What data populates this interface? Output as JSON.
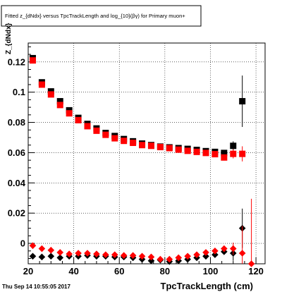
{
  "title_box": {
    "text": "Fitted  z_{dNdx}  versus TpcTrackLength and log_{10}(βγ) for Primary muon+"
  },
  "footer": {
    "date": "Thu Sep 14 10:55:05 2017"
  },
  "colors": {
    "series_black": "#000000",
    "series_red": "#ff0000",
    "frame": "#000000",
    "grid": "#000000"
  },
  "chart_data": {
    "type": "scatter",
    "title": "Fitted  z_{dNdx}  versus TpcTrackLength and log_{10}(βγ) for Primary muon+",
    "xlabel": "TpcTrackLength (cm)",
    "ylabel": "Z_{dNdx}",
    "xlim": [
      20,
      124
    ],
    "ylim": [
      -0.0135,
      0.1325
    ],
    "xticks": [
      20,
      40,
      60,
      80,
      100,
      120
    ],
    "yticks": [
      0,
      0.02,
      0.04,
      0.06,
      0.08,
      0.1,
      0.12
    ],
    "ytick_labels": [
      "0",
      "0.02",
      "0.04",
      "0.06",
      "0.08",
      "0.1",
      "0.12"
    ],
    "grid": true,
    "legend": "none",
    "series": [
      {
        "marker": "square",
        "color": "#000000",
        "x": [
          22,
          26,
          30,
          34,
          38,
          42,
          46,
          50,
          54,
          58,
          62,
          66,
          70,
          74,
          78,
          82,
          86,
          90,
          94,
          98,
          102,
          106,
          110,
          114
        ],
        "y": [
          0.1225,
          0.1065,
          0.1005,
          0.094,
          0.088,
          0.083,
          0.079,
          0.076,
          0.073,
          0.071,
          0.069,
          0.0675,
          0.066,
          0.065,
          0.064,
          0.0635,
          0.063,
          0.0625,
          0.0618,
          0.061,
          0.0605,
          0.0598,
          0.0645,
          0.094
        ],
        "yerr": [
          0.001,
          0.001,
          0.001,
          0.001,
          0.001,
          0.001,
          0.001,
          0.001,
          0.001,
          0.001,
          0.001,
          0.001,
          0.001,
          0.001,
          0.001,
          0.001,
          0.001,
          0.001,
          0.001,
          0.001,
          0.001,
          0.002,
          0.003,
          0.017
        ]
      },
      {
        "marker": "square",
        "color": "#ff0000",
        "x": [
          22,
          26,
          30,
          34,
          38,
          42,
          46,
          50,
          54,
          58,
          62,
          66,
          70,
          74,
          78,
          82,
          86,
          90,
          94,
          98,
          102,
          106,
          110,
          114
        ],
        "y": [
          0.121,
          0.105,
          0.0985,
          0.0915,
          0.086,
          0.0815,
          0.0775,
          0.0745,
          0.0718,
          0.0695,
          0.0678,
          0.0665,
          0.065,
          0.0645,
          0.0637,
          0.063,
          0.062,
          0.0612,
          0.0605,
          0.0598,
          0.059,
          0.0568,
          0.0592,
          0.0592
        ],
        "yerr": [
          0.001,
          0.001,
          0.001,
          0.001,
          0.001,
          0.001,
          0.001,
          0.001,
          0.001,
          0.001,
          0.001,
          0.001,
          0.001,
          0.001,
          0.001,
          0.001,
          0.001,
          0.001,
          0.001,
          0.001,
          0.001,
          0.002,
          0.003,
          0.005
        ]
      },
      {
        "marker": "diamond",
        "color": "#000000",
        "x": [
          22,
          26,
          30,
          34,
          38,
          42,
          46,
          50,
          54,
          58,
          62,
          66,
          70,
          74,
          78,
          82,
          86,
          90,
          94,
          98,
          102,
          106,
          110,
          114
        ],
        "y": [
          -0.0085,
          -0.009,
          -0.0085,
          -0.0095,
          -0.0085,
          -0.0085,
          -0.008,
          -0.0085,
          -0.0085,
          -0.009,
          -0.009,
          -0.0095,
          -0.0105,
          -0.0115,
          -0.011,
          -0.012,
          -0.0115,
          -0.0105,
          -0.0095,
          -0.0085,
          -0.0075,
          -0.0055,
          -0.0065,
          0.01
        ],
        "yerr": [
          0.001,
          0.001,
          0.001,
          0.001,
          0.001,
          0.001,
          0.001,
          0.001,
          0.001,
          0.001,
          0.001,
          0.001,
          0.001,
          0.001,
          0.001,
          0.001,
          0.001,
          0.001,
          0.001,
          0.001,
          0.001,
          0.002,
          0.005,
          0.013
        ]
      },
      {
        "marker": "diamond",
        "color": "#ff0000",
        "x": [
          22,
          26,
          30,
          34,
          38,
          42,
          46,
          50,
          54,
          58,
          62,
          66,
          70,
          74,
          78,
          82,
          86,
          90,
          94,
          98,
          102,
          106,
          110,
          114,
          118
        ],
        "y": [
          -0.0015,
          -0.0035,
          -0.0045,
          -0.006,
          -0.007,
          -0.0065,
          -0.0065,
          -0.007,
          -0.0075,
          -0.0075,
          -0.008,
          -0.008,
          -0.0085,
          -0.009,
          -0.0105,
          -0.0105,
          -0.0095,
          -0.0085,
          -0.0075,
          -0.006,
          -0.005,
          -0.0035,
          -0.0035,
          -0.0065,
          -0.0135
        ],
        "yerr": [
          0.001,
          0.001,
          0.001,
          0.001,
          0.001,
          0.001,
          0.001,
          0.001,
          0.001,
          0.001,
          0.001,
          0.001,
          0.001,
          0.001,
          0.001,
          0.001,
          0.001,
          0.001,
          0.001,
          0.001,
          0.001,
          0.002,
          0.004,
          0.018,
          0.043
        ]
      }
    ]
  }
}
